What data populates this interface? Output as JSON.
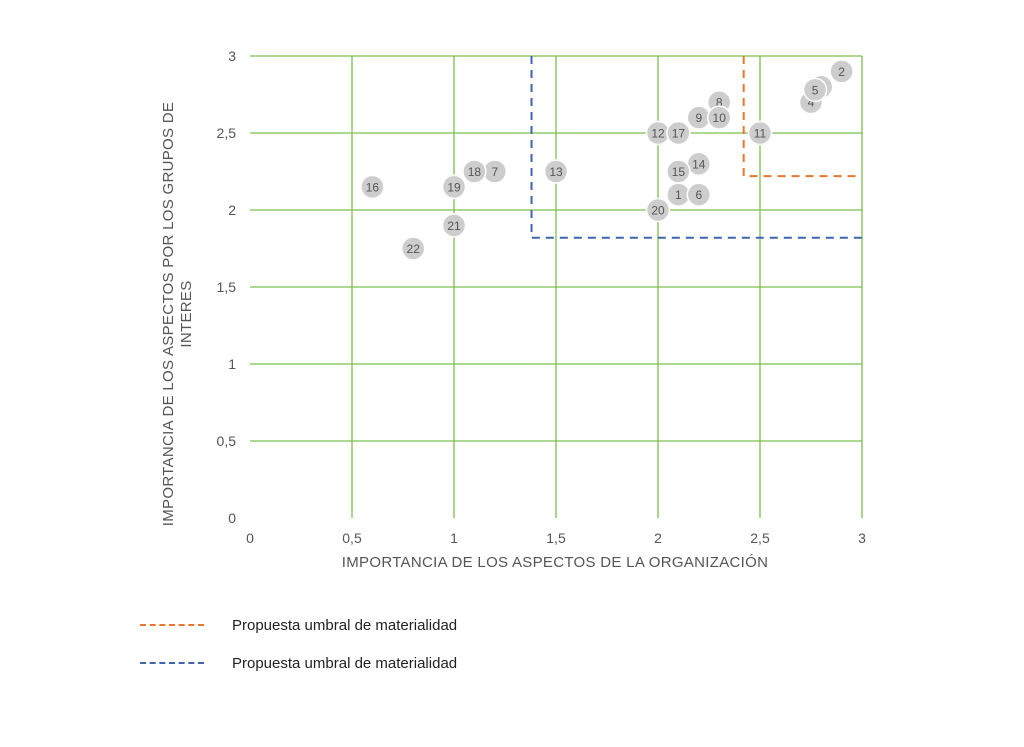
{
  "chart_data": {
    "type": "scatter",
    "xlabel": "IMPORTANCIA DE LOS ASPECTOS DE LA ORGANIZACIÓN",
    "ylabel_lines": [
      "IMPORTANCIA DE LOS ASPECTOS POR LOS GRUPOS DE",
      "INTERES"
    ],
    "xlim": [
      0,
      3
    ],
    "ylim": [
      0,
      3
    ],
    "xticks": [
      {
        "value": 0,
        "label": "0"
      },
      {
        "value": 0.5,
        "label": "0,5"
      },
      {
        "value": 1,
        "label": "1"
      },
      {
        "value": 1.5,
        "label": "1,5"
      },
      {
        "value": 2,
        "label": "2"
      },
      {
        "value": 2.5,
        "label": "2,5"
      },
      {
        "value": 3,
        "label": "3"
      }
    ],
    "yticks": [
      {
        "value": 0,
        "label": "0"
      },
      {
        "value": 0.5,
        "label": "0,5"
      },
      {
        "value": 1,
        "label": "1"
      },
      {
        "value": 1.5,
        "label": "1,5"
      },
      {
        "value": 2,
        "label": "2"
      },
      {
        "value": 2.5,
        "label": "2,5"
      },
      {
        "value": 3,
        "label": "3"
      }
    ],
    "grid": true,
    "colors": {
      "grid": "#7cc04e",
      "marker": "#cdcdcd",
      "orange": "#e8762d",
      "blue": "#3e64b2"
    },
    "points": [
      {
        "label": "1",
        "x": 2.1,
        "y": 2.1
      },
      {
        "label": "2",
        "x": 2.9,
        "y": 2.9
      },
      {
        "label": "3",
        "x": 2.8,
        "y": 2.8
      },
      {
        "label": "4",
        "x": 2.75,
        "y": 2.7
      },
      {
        "label": "5",
        "x": 2.77,
        "y": 2.78
      },
      {
        "label": "6",
        "x": 2.2,
        "y": 2.1
      },
      {
        "label": "7",
        "x": 1.2,
        "y": 2.25
      },
      {
        "label": "8",
        "x": 2.3,
        "y": 2.7
      },
      {
        "label": "9",
        "x": 2.2,
        "y": 2.6
      },
      {
        "label": "10",
        "x": 2.3,
        "y": 2.6
      },
      {
        "label": "11",
        "x": 2.5,
        "y": 2.5
      },
      {
        "label": "12",
        "x": 2.0,
        "y": 2.5
      },
      {
        "label": "13",
        "x": 1.5,
        "y": 2.25
      },
      {
        "label": "14",
        "x": 2.2,
        "y": 2.3
      },
      {
        "label": "15",
        "x": 2.1,
        "y": 2.25
      },
      {
        "label": "16",
        "x": 0.6,
        "y": 2.15
      },
      {
        "label": "17",
        "x": 2.1,
        "y": 2.5
      },
      {
        "label": "18",
        "x": 1.1,
        "y": 2.25
      },
      {
        "label": "19",
        "x": 1.0,
        "y": 2.15
      },
      {
        "label": "20",
        "x": 2.0,
        "y": 2.0
      },
      {
        "label": "21",
        "x": 1.0,
        "y": 1.9
      },
      {
        "label": "22",
        "x": 0.8,
        "y": 1.75
      }
    ],
    "thresholds": [
      {
        "color": "orange",
        "x": 2.42,
        "y": 2.22,
        "legend": "Propuesta umbral de materialidad"
      },
      {
        "color": "blue",
        "x": 1.38,
        "y": 1.82,
        "legend": "Propuesta umbral de materialidad"
      }
    ]
  }
}
